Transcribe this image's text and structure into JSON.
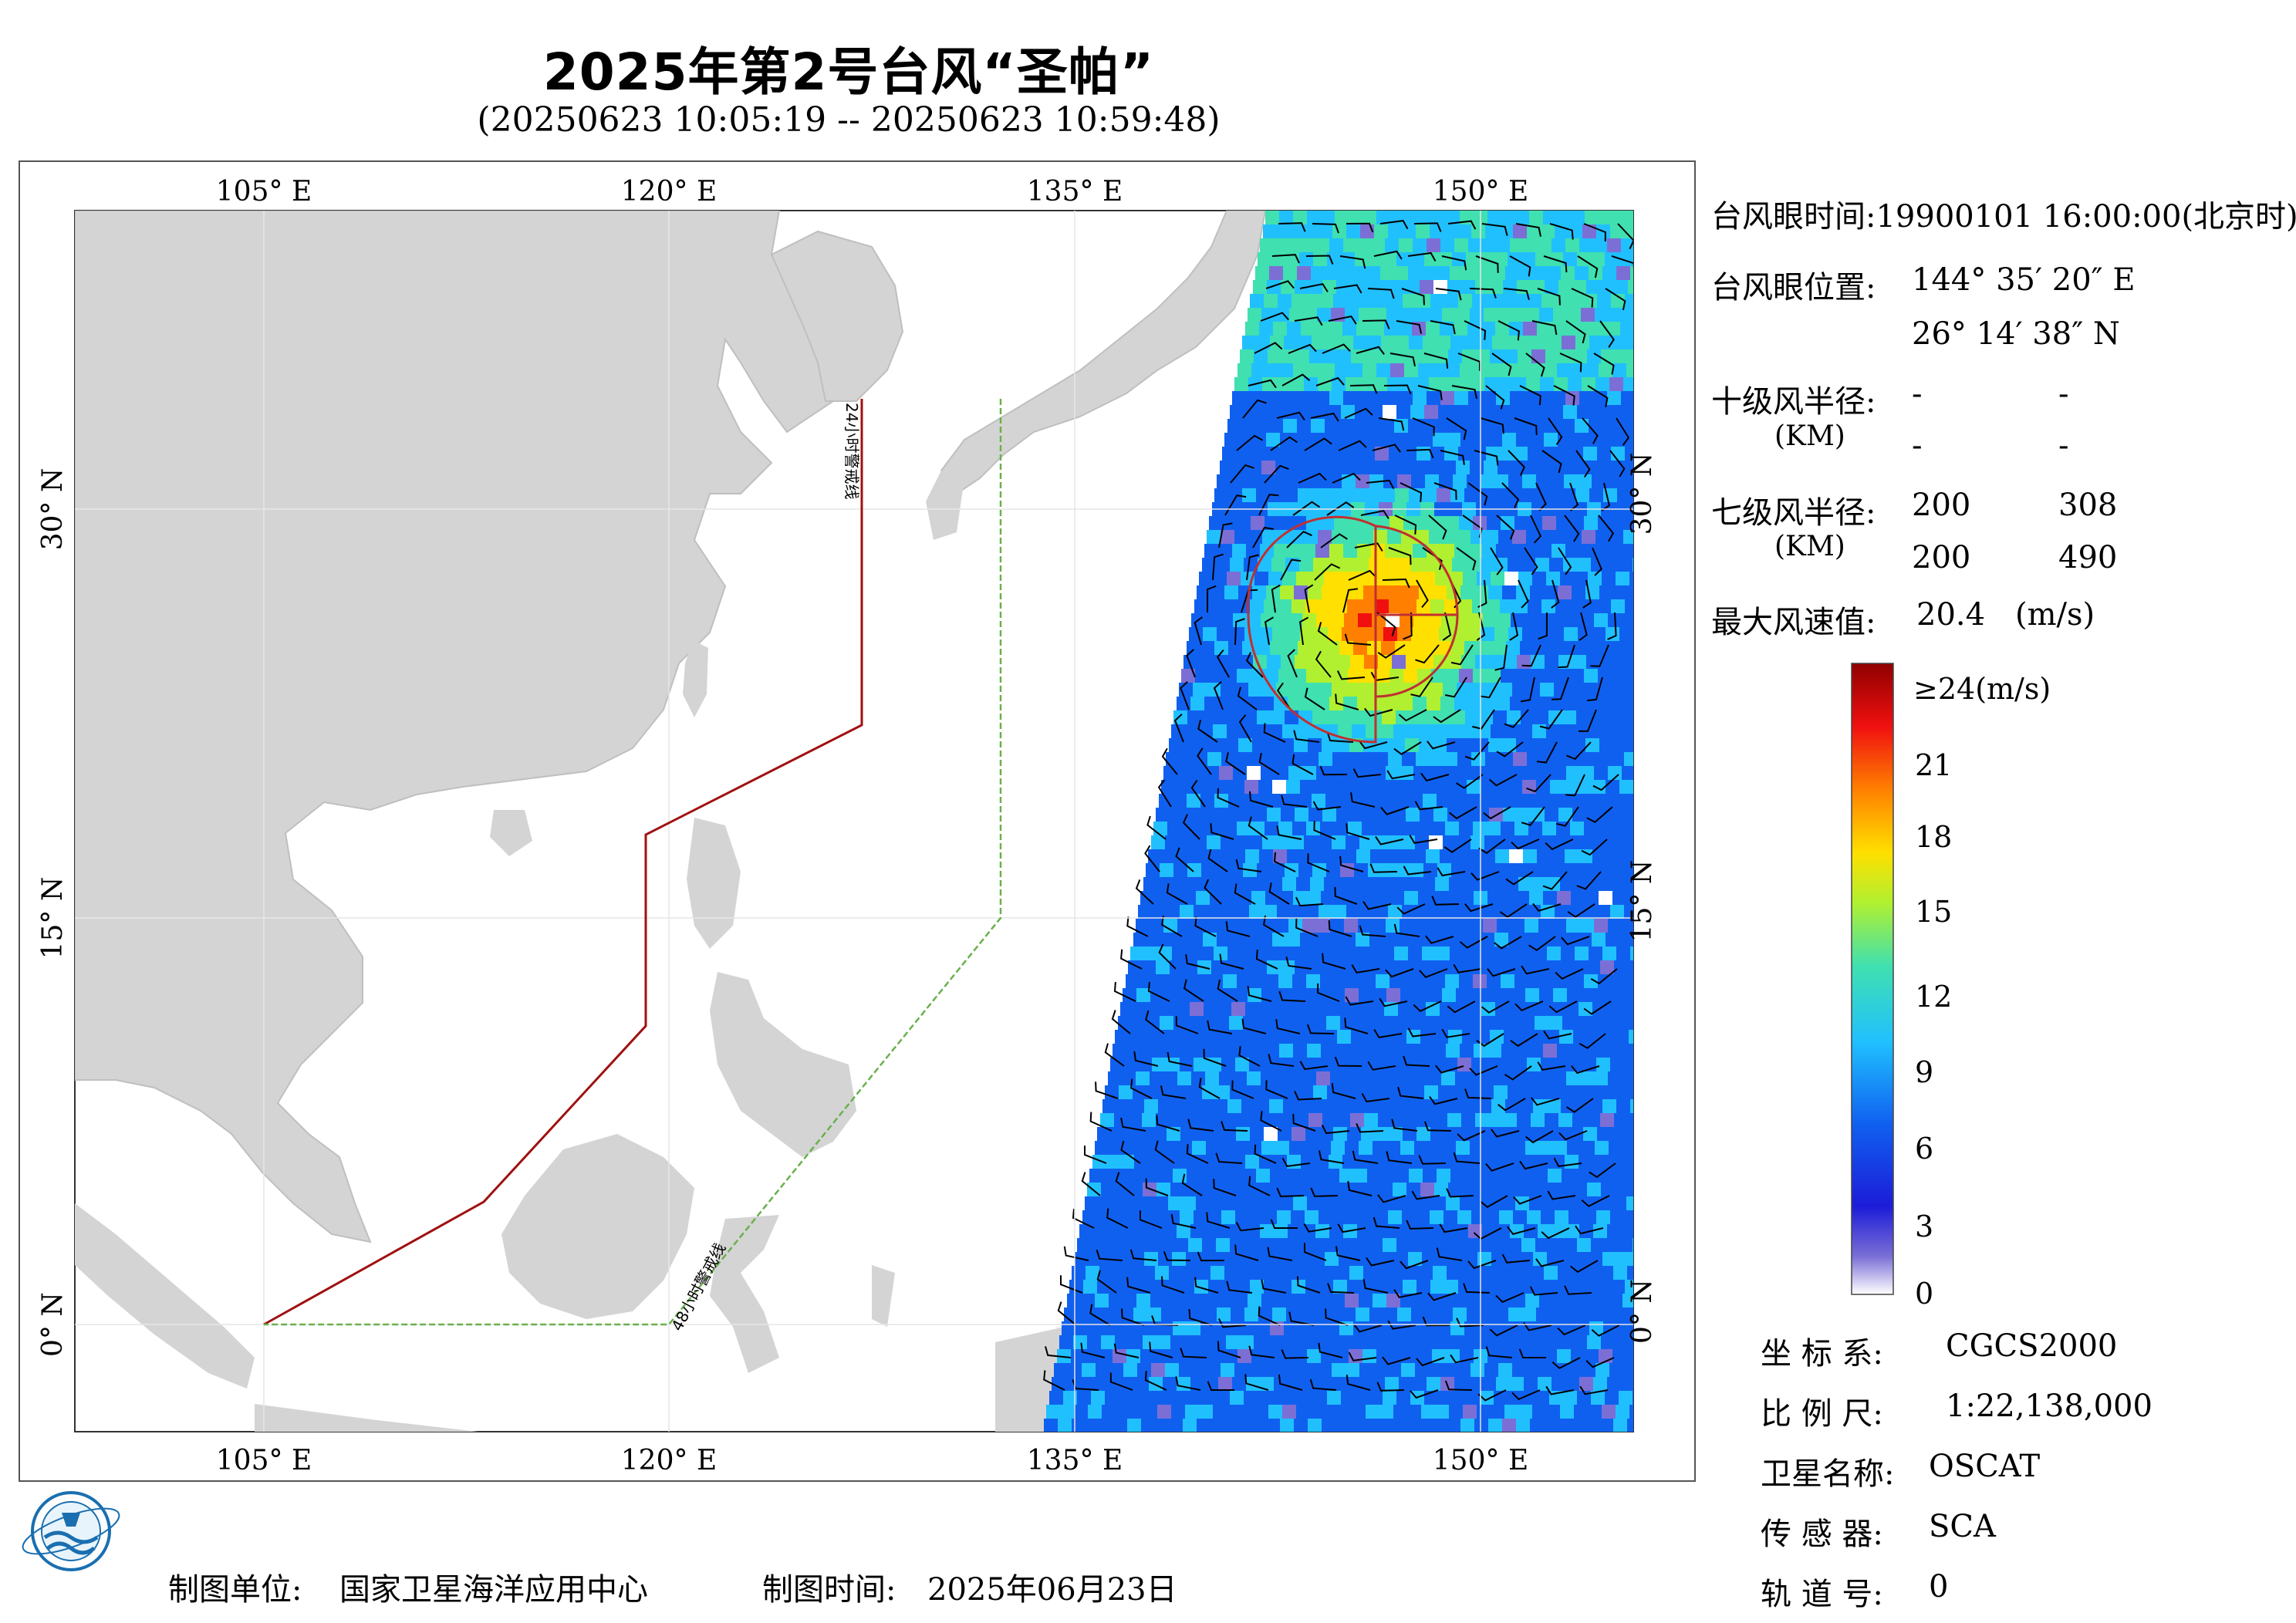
{
  "title": "2025年第2号台风“圣帕”",
  "subtitle": "(20250623 10:05:19 -- 20250623 10:59:48)",
  "map": {
    "lon_top": [
      "105° E",
      "120° E",
      "135° E",
      "150° E"
    ],
    "lon_bottom": [
      "105° E",
      "120° E",
      "135° E",
      "150° E"
    ],
    "lat_left": [
      "30° N",
      "15° N",
      "0° N"
    ],
    "lat_right": [
      "30° N",
      "15° N",
      "0° N"
    ],
    "warning_24h": "24小时警戒线",
    "warning_48h": "48小时警戒线"
  },
  "info": {
    "eye_time_label": "台风眼时间:",
    "eye_time_value": "19900101 16:00:00(北京时)",
    "eye_pos_label": "台风眼位置:",
    "eye_lon": "144° 35′ 20″ E",
    "eye_lat": "26° 14′ 38″ N",
    "r10_label": "十级风半径:",
    "km_label": "(KM)",
    "r10_values": [
      "-",
      "-",
      "-",
      "-"
    ],
    "r7_label": "七级风半径:",
    "r7_values": [
      "200",
      "308",
      "200",
      "490"
    ],
    "max_wind_label": "最大风速值:",
    "max_wind_value": "20.4",
    "max_wind_unit": "(m/s)"
  },
  "colorbar": {
    "top_label": "≥24(m/s)",
    "ticks": [
      "21",
      "18",
      "15",
      "12",
      "9",
      "6",
      "3",
      "0"
    ],
    "colors": [
      "#ffffff",
      "#7b6fd6",
      "#1c1cd8",
      "#1060f0",
      "#20c0ff",
      "#40e0b0",
      "#b0f030",
      "#ffe000",
      "#ff8000",
      "#f01010",
      "#900000"
    ]
  },
  "meta": {
    "crs_label": "坐 标 系:",
    "crs_value": "CGCS2000",
    "scale_label": "比 例 尺:",
    "scale_value": "1:22,138,000",
    "satellite_label": "卫星名称:",
    "satellite_value": "OSCAT",
    "sensor_label": "传 感 器:",
    "sensor_value": "SCA",
    "orbit_label": "轨 道 号:",
    "orbit_value": "0"
  },
  "footer": {
    "maker_label": "制图单位:",
    "maker_value": "国家卫星海洋应用中心",
    "date_label": "制图时间:",
    "date_value": "2025年06月23日"
  }
}
